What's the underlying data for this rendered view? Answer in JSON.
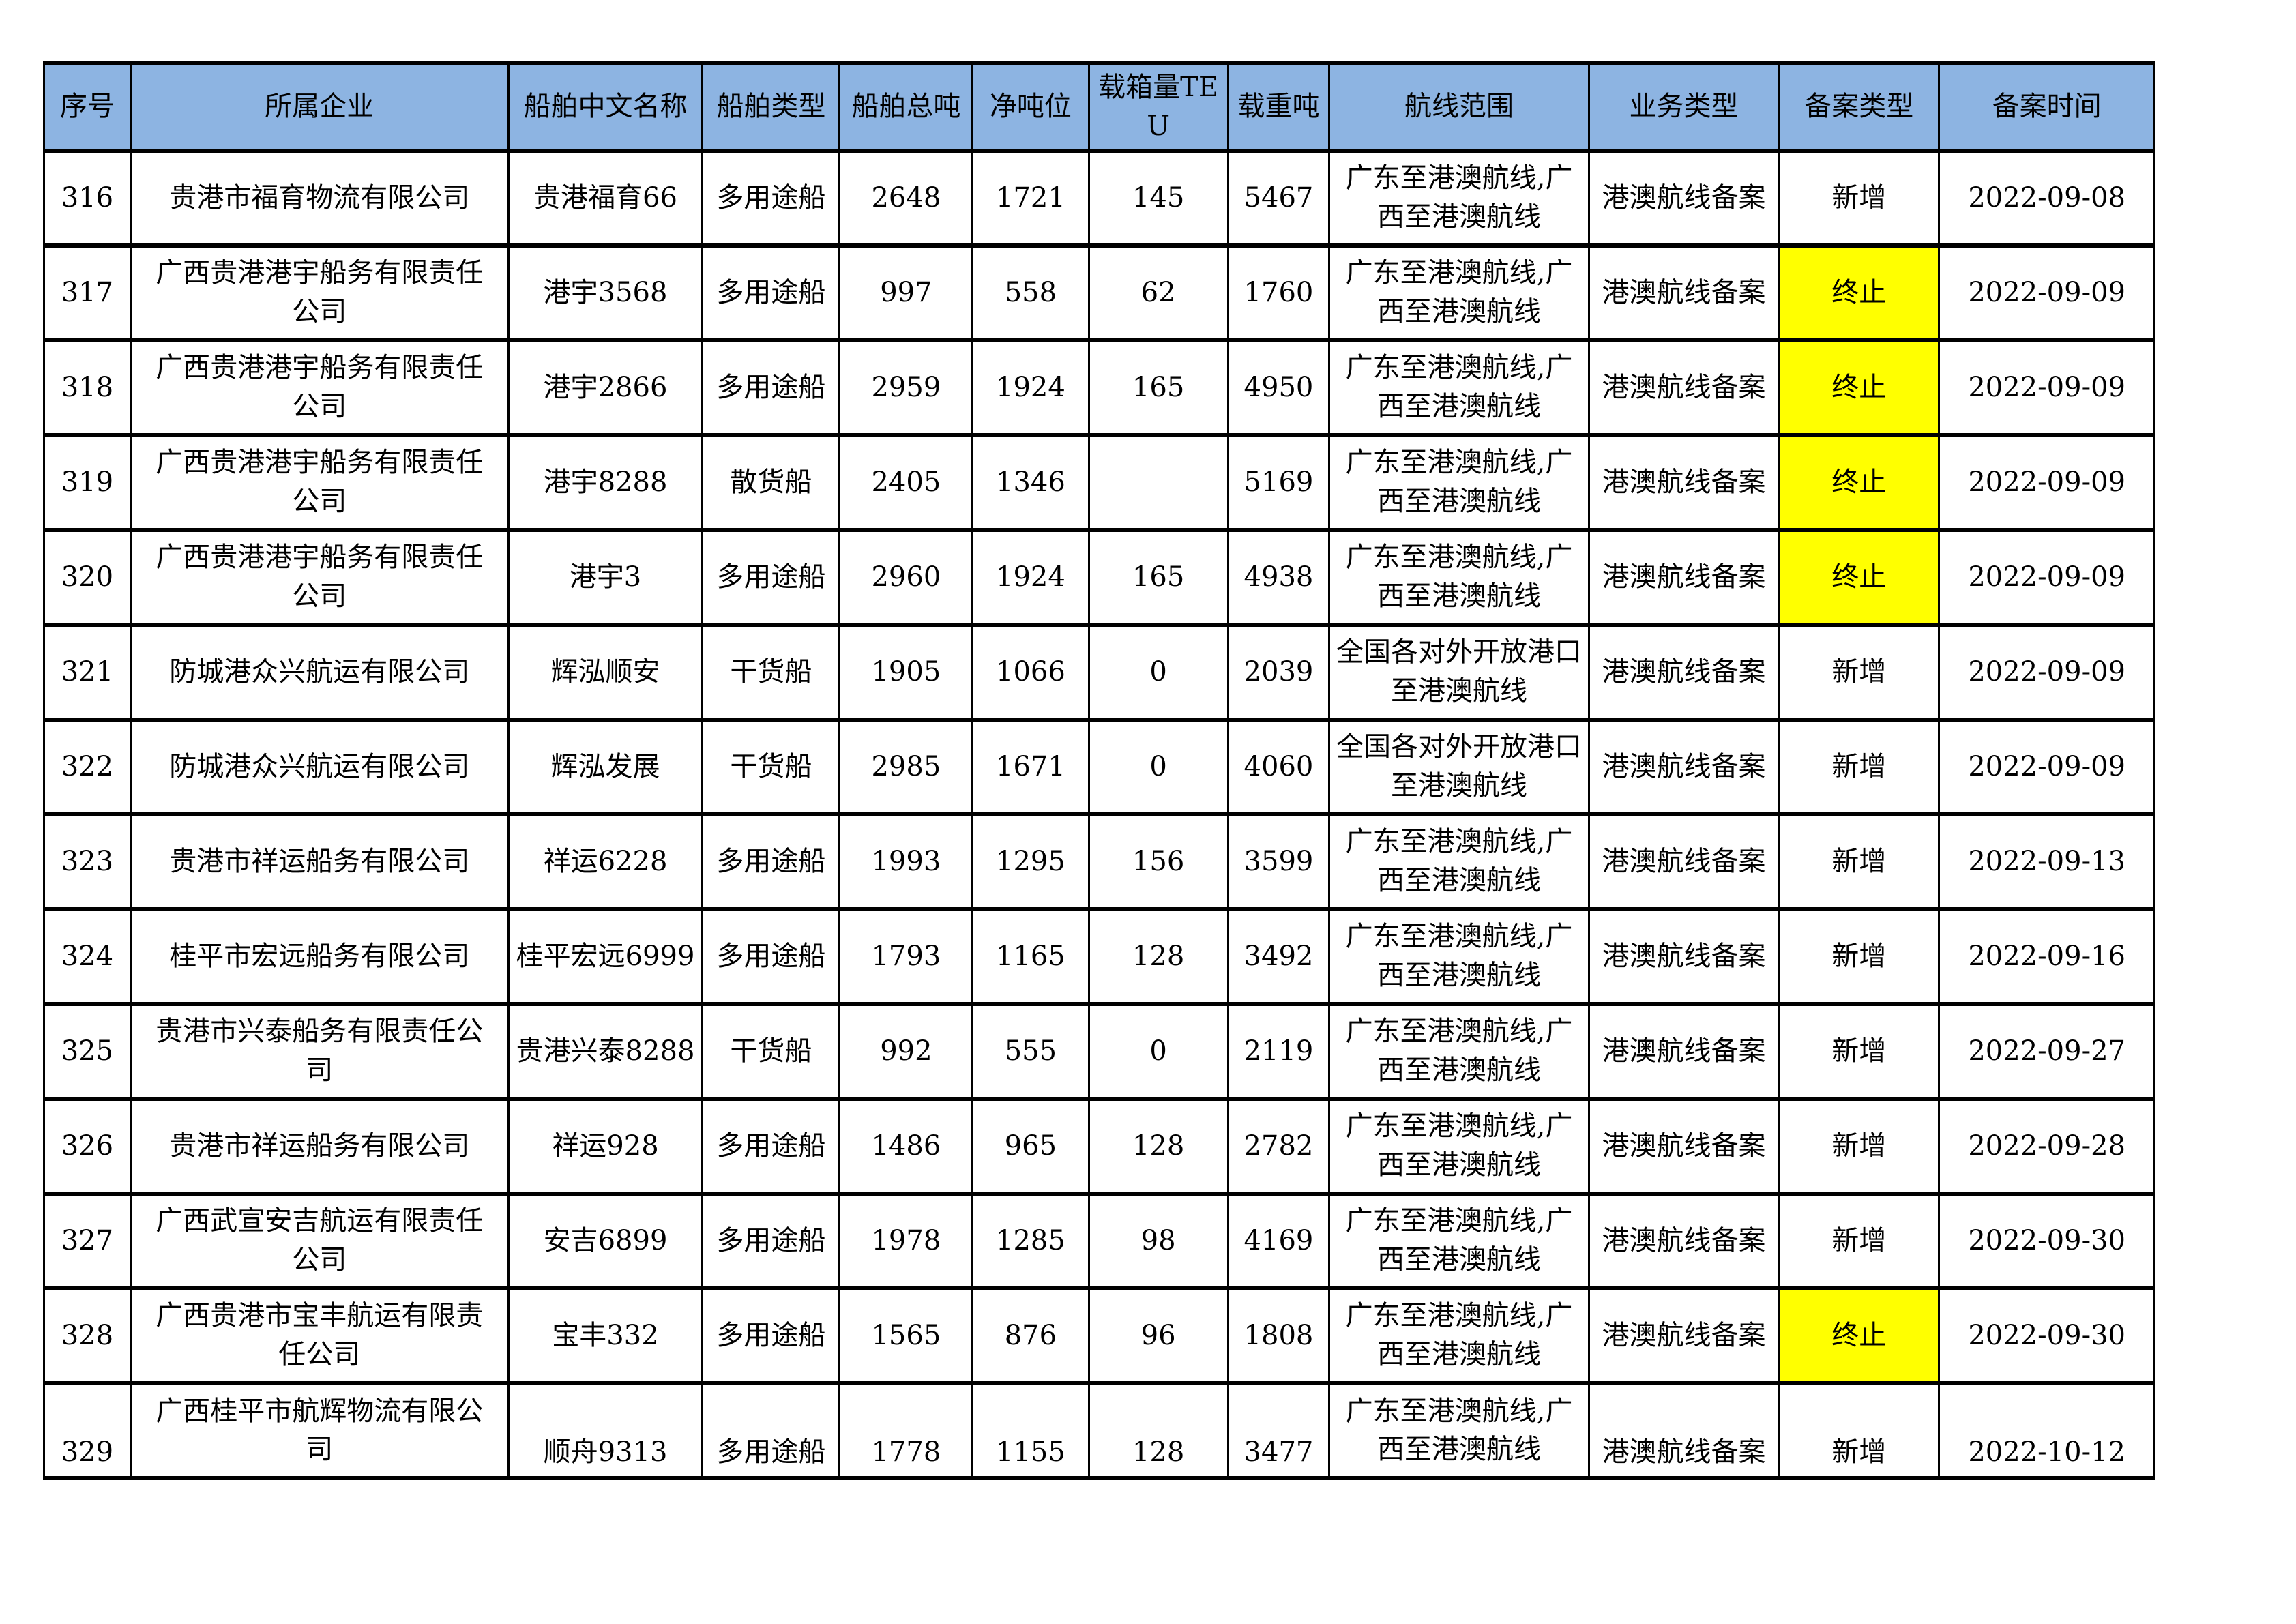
{
  "table": {
    "header_bg": "#8DB4E2",
    "highlight_color": "#FFFF00",
    "columns": [
      {
        "key": "no",
        "label": "序号",
        "width": "4.1%"
      },
      {
        "key": "company",
        "label": "所属企业",
        "width": "17.9%"
      },
      {
        "key": "ship_name",
        "label": "船舶中文名称",
        "width": "9.2%"
      },
      {
        "key": "ship_type",
        "label": "船舶类型",
        "width": "6.5%"
      },
      {
        "key": "gross_tonnage",
        "label": "船舶总吨",
        "width": "6.3%"
      },
      {
        "key": "net_tonnage",
        "label": "净吨位",
        "width": "5.5%"
      },
      {
        "key": "teu",
        "label": "载箱量TEU",
        "width": "6.6%"
      },
      {
        "key": "deadweight",
        "label": "载重吨",
        "width": "4.8%"
      },
      {
        "key": "route",
        "label": "航线范围",
        "width": "12.3%"
      },
      {
        "key": "business_type",
        "label": "业务类型",
        "width": "9.0%"
      },
      {
        "key": "filing_type",
        "label": "备案类型",
        "width": "7.6%"
      },
      {
        "key": "filing_date",
        "label": "备案时间",
        "width": "10.2%"
      }
    ],
    "rows": [
      {
        "no": "316",
        "company": "贵港市福育物流有限公司",
        "ship_name": "贵港福育66",
        "ship_type": "多用途船",
        "gross_tonnage": "2648",
        "net_tonnage": "1721",
        "teu": "145",
        "deadweight": "5467",
        "route": "广东至港澳航线,广西至港澳航线",
        "business_type": "港澳航线备案",
        "filing_type": "新增",
        "filing_highlight": false,
        "filing_date": "2022-09-08",
        "cut": false
      },
      {
        "no": "317",
        "company": "广西贵港港宇船务有限责任公司",
        "ship_name": "港宇3568",
        "ship_type": "多用途船",
        "gross_tonnage": "997",
        "net_tonnage": "558",
        "teu": "62",
        "deadweight": "1760",
        "route": "广东至港澳航线,广西至港澳航线",
        "business_type": "港澳航线备案",
        "filing_type": "终止",
        "filing_highlight": true,
        "filing_date": "2022-09-09",
        "cut": false
      },
      {
        "no": "318",
        "company": "广西贵港港宇船务有限责任公司",
        "ship_name": "港宇2866",
        "ship_type": "多用途船",
        "gross_tonnage": "2959",
        "net_tonnage": "1924",
        "teu": "165",
        "deadweight": "4950",
        "route": "广东至港澳航线,广西至港澳航线",
        "business_type": "港澳航线备案",
        "filing_type": "终止",
        "filing_highlight": true,
        "filing_date": "2022-09-09",
        "cut": false
      },
      {
        "no": "319",
        "company": "广西贵港港宇船务有限责任公司",
        "ship_name": "港宇8288",
        "ship_type": "散货船",
        "gross_tonnage": "2405",
        "net_tonnage": "1346",
        "teu": "",
        "deadweight": "5169",
        "route": "广东至港澳航线,广西至港澳航线",
        "business_type": "港澳航线备案",
        "filing_type": "终止",
        "filing_highlight": true,
        "filing_date": "2022-09-09",
        "cut": false
      },
      {
        "no": "320",
        "company": "广西贵港港宇船务有限责任公司",
        "ship_name": "港宇3",
        "ship_type": "多用途船",
        "gross_tonnage": "2960",
        "net_tonnage": "1924",
        "teu": "165",
        "deadweight": "4938",
        "route": "广东至港澳航线,广西至港澳航线",
        "business_type": "港澳航线备案",
        "filing_type": "终止",
        "filing_highlight": true,
        "filing_date": "2022-09-09",
        "cut": false
      },
      {
        "no": "321",
        "company": "防城港众兴航运有限公司",
        "ship_name": "辉泓顺安",
        "ship_type": "干货船",
        "gross_tonnage": "1905",
        "net_tonnage": "1066",
        "teu": "0",
        "deadweight": "2039",
        "route": "全国各对外开放港口至港澳航线",
        "business_type": "港澳航线备案",
        "filing_type": "新增",
        "filing_highlight": false,
        "filing_date": "2022-09-09",
        "cut": false
      },
      {
        "no": "322",
        "company": "防城港众兴航运有限公司",
        "ship_name": "辉泓发展",
        "ship_type": "干货船",
        "gross_tonnage": "2985",
        "net_tonnage": "1671",
        "teu": "0",
        "deadweight": "4060",
        "route": "全国各对外开放港口至港澳航线",
        "business_type": "港澳航线备案",
        "filing_type": "新增",
        "filing_highlight": false,
        "filing_date": "2022-09-09",
        "cut": false
      },
      {
        "no": "323",
        "company": "贵港市祥运船务有限公司",
        "ship_name": "祥运6228",
        "ship_type": "多用途船",
        "gross_tonnage": "1993",
        "net_tonnage": "1295",
        "teu": "156",
        "deadweight": "3599",
        "route": "广东至港澳航线,广西至港澳航线",
        "business_type": "港澳航线备案",
        "filing_type": "新增",
        "filing_highlight": false,
        "filing_date": "2022-09-13",
        "cut": false
      },
      {
        "no": "324",
        "company": "桂平市宏远船务有限公司",
        "ship_name": "桂平宏远6999",
        "ship_type": "多用途船",
        "gross_tonnage": "1793",
        "net_tonnage": "1165",
        "teu": "128",
        "deadweight": "3492",
        "route": "广东至港澳航线,广西至港澳航线",
        "business_type": "港澳航线备案",
        "filing_type": "新增",
        "filing_highlight": false,
        "filing_date": "2022-09-16",
        "cut": false
      },
      {
        "no": "325",
        "company": "贵港市兴泰船务有限责任公司",
        "ship_name": "贵港兴泰8288",
        "ship_type": "干货船",
        "gross_tonnage": "992",
        "net_tonnage": "555",
        "teu": "0",
        "deadweight": "2119",
        "route": "广东至港澳航线,广西至港澳航线",
        "business_type": "港澳航线备案",
        "filing_type": "新增",
        "filing_highlight": false,
        "filing_date": "2022-09-27",
        "cut": false
      },
      {
        "no": "326",
        "company": "贵港市祥运船务有限公司",
        "ship_name": "祥运928",
        "ship_type": "多用途船",
        "gross_tonnage": "1486",
        "net_tonnage": "965",
        "teu": "128",
        "deadweight": "2782",
        "route": "广东至港澳航线,广西至港澳航线",
        "business_type": "港澳航线备案",
        "filing_type": "新增",
        "filing_highlight": false,
        "filing_date": "2022-09-28",
        "cut": false
      },
      {
        "no": "327",
        "company": "广西武宣安吉航运有限责任公司",
        "ship_name": "安吉6899",
        "ship_type": "多用途船",
        "gross_tonnage": "1978",
        "net_tonnage": "1285",
        "teu": "98",
        "deadweight": "4169",
        "route": "广东至港澳航线,广西至港澳航线",
        "business_type": "港澳航线备案",
        "filing_type": "新增",
        "filing_highlight": false,
        "filing_date": "2022-09-30",
        "cut": false
      },
      {
        "no": "328",
        "company": "广西贵港市宝丰航运有限责任公司",
        "ship_name": "宝丰332",
        "ship_type": "多用途船",
        "gross_tonnage": "1565",
        "net_tonnage": "876",
        "teu": "96",
        "deadweight": "1808",
        "route": "广东至港澳航线,广西至港澳航线",
        "business_type": "港澳航线备案",
        "filing_type": "终止",
        "filing_highlight": true,
        "filing_date": "2022-09-30",
        "cut": false
      },
      {
        "no": "329",
        "company": "广西桂平市航辉物流有限公司",
        "ship_name": "顺舟9313",
        "ship_type": "多用途船",
        "gross_tonnage": "1778",
        "net_tonnage": "1155",
        "teu": "128",
        "deadweight": "3477",
        "route": "广东至港澳航线,广西至港澳航线",
        "business_type": "港澳航线备案",
        "filing_type": "新增",
        "filing_highlight": false,
        "filing_date": "2022-10-12",
        "cut": true
      }
    ]
  }
}
